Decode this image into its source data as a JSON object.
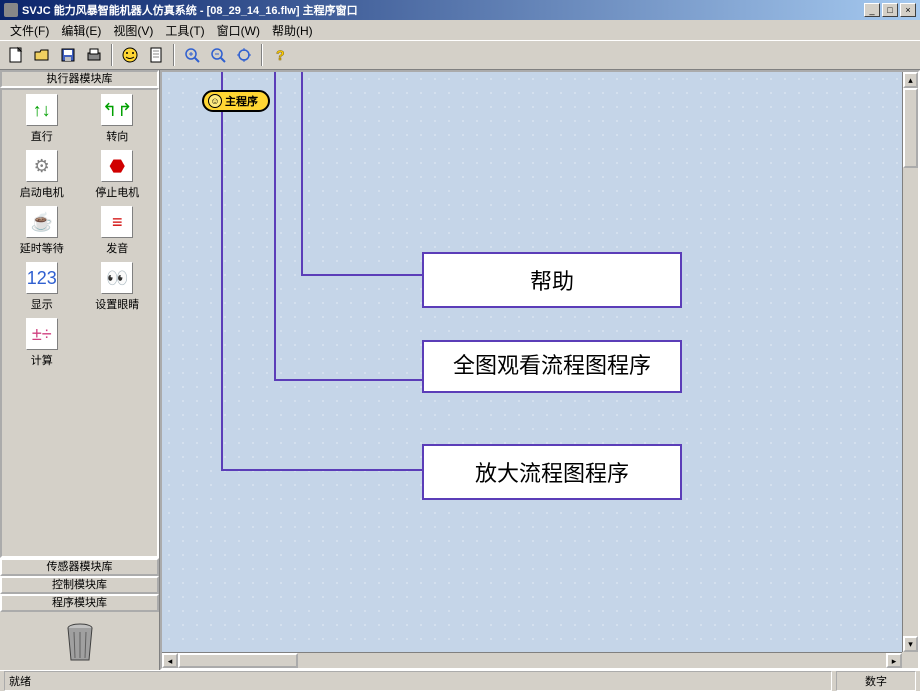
{
  "colors": {
    "titlebar_start": "#0a246a",
    "titlebar_end": "#a6caf0",
    "chrome": "#d4d0c8",
    "canvas_bg": "#c5d5e8",
    "callout_border": "#5b3db8",
    "main_block_bg": "#ffd633"
  },
  "title": "SVJC 能力风暴智能机器人仿真系统 - [08_29_14_16.flw]   主程序窗口",
  "menu": {
    "file": "文件(F)",
    "edit": "编辑(E)",
    "view": "视图(V)",
    "tool": "工具(T)",
    "window": "窗口(W)",
    "help": "帮助(H)"
  },
  "toolbar_icons": [
    "new",
    "open",
    "save",
    "print",
    "smile",
    "sheet",
    "zoom-in",
    "zoom-out",
    "zoom-fit",
    "help"
  ],
  "sidebar": {
    "header": "执行器模块库",
    "modules": [
      {
        "label": "直行",
        "icon": "↑↓",
        "color": "#00a000"
      },
      {
        "label": "转向",
        "icon": "↰↱",
        "color": "#00a000"
      },
      {
        "label": "启动电机",
        "icon": "⚙",
        "color": "#808080"
      },
      {
        "label": "停止电机",
        "icon": "⬣",
        "color": "#d00000"
      },
      {
        "label": "延时等待",
        "icon": "☕",
        "color": "#a06030"
      },
      {
        "label": "发音",
        "icon": "≡",
        "color": "#d00000"
      },
      {
        "label": "显示",
        "icon": "123",
        "color": "#3060d0"
      },
      {
        "label": "设置眼睛",
        "icon": "👀",
        "color": "#3060d0"
      },
      {
        "label": "计算",
        "icon": "±÷",
        "color": "#d04080"
      }
    ],
    "panels": [
      "传感器模块库",
      "控制模块库",
      "程序模块库"
    ]
  },
  "canvas": {
    "main_block": "主程序",
    "callouts": [
      {
        "text": "帮助",
        "target_tool_idx": 9
      },
      {
        "text": "全图观看流程图程序",
        "target_tool_idx": 8
      },
      {
        "text": "放大流程图程序",
        "target_tool_idx": 6
      }
    ]
  },
  "statusbar": {
    "left": "就绪",
    "right": "数字"
  }
}
